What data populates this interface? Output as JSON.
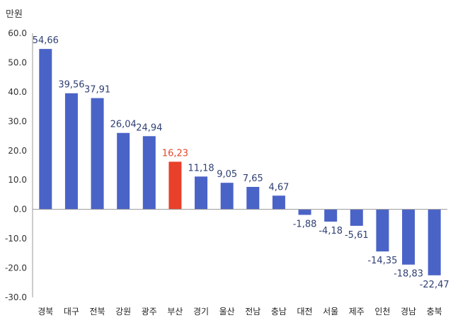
{
  "unit_label": "만원",
  "colors": {
    "bar": "#4a63c7",
    "highlight": "#e8402a",
    "axis": "#999999",
    "label": "#2f3f73",
    "highlight_label": "#e8432a"
  },
  "chart_data": {
    "type": "bar",
    "title": "",
    "xlabel": "",
    "ylabel": "만원",
    "ylim": [
      -30,
      60
    ],
    "yticks": [
      "60.0",
      "50.0",
      "40.0",
      "30.0",
      "20.0",
      "10.0",
      "0.0",
      "-10.0",
      "-20.0",
      "-30.0"
    ],
    "categories": [
      "경북",
      "대구",
      "전북",
      "강원",
      "광주",
      "부산",
      "경기",
      "울산",
      "전남",
      "충남",
      "대전",
      "서울",
      "제주",
      "인천",
      "경남",
      "충북"
    ],
    "values": [
      54.66,
      39.56,
      37.91,
      26.04,
      24.94,
      16.23,
      11.18,
      9.05,
      7.65,
      4.67,
      -1.88,
      -4.18,
      -5.61,
      -14.35,
      -18.83,
      -22.47
    ],
    "value_labels": [
      "54,66",
      "39,56",
      "37,91",
      "26,04",
      "24,94",
      "16,23",
      "11,18",
      "9,05",
      "7,65",
      "4,67",
      "-1,88",
      "-4,18",
      "-5,61",
      "-14,35",
      "-18,83",
      "-22,47"
    ],
    "highlight": "부산",
    "grid": false,
    "legend": "none"
  }
}
